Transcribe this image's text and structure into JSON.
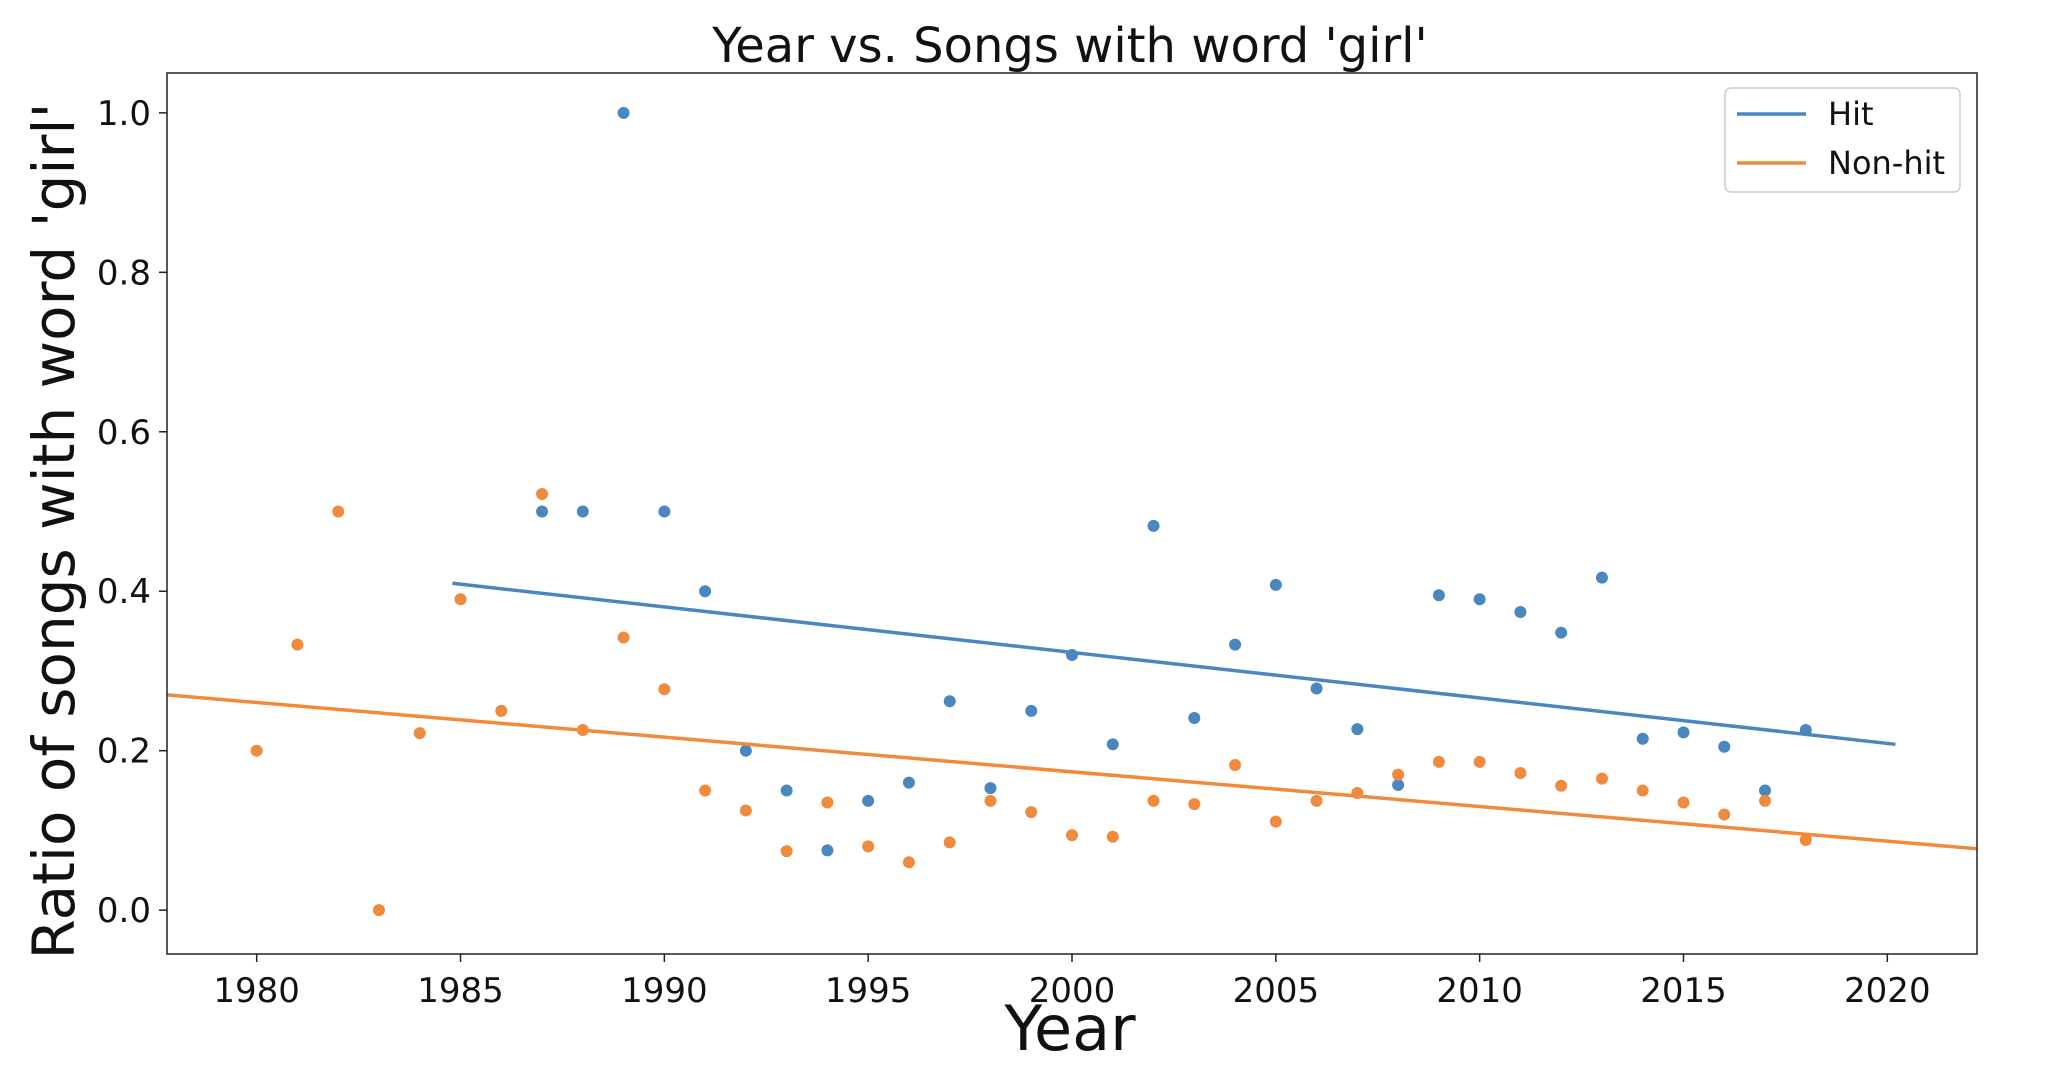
{
  "chart_data": {
    "type": "scatter",
    "title": "Year vs. Songs with word 'girl'",
    "xlabel": "Year",
    "ylabel": "Ratio of songs with word 'girl'",
    "xlim": [
      1977.8,
      2022.2
    ],
    "ylim": [
      -0.055,
      1.05
    ],
    "x_ticks": [
      1980,
      1985,
      1990,
      1995,
      2000,
      2005,
      2010,
      2015,
      2020
    ],
    "y_ticks": [
      0.0,
      0.2,
      0.4,
      0.6,
      0.8,
      1.0
    ],
    "y_tick_labels": [
      "0.0",
      "0.2",
      "0.4",
      "0.6",
      "0.8",
      "1.0"
    ],
    "grid": false,
    "legend_position": "top-right",
    "series": [
      {
        "name": "Hit",
        "color": "#4a86bf",
        "points": [
          [
            1987,
            0.5
          ],
          [
            1988,
            0.5
          ],
          [
            1989,
            1.0
          ],
          [
            1990,
            0.5
          ],
          [
            1991,
            0.4
          ],
          [
            1992,
            0.2
          ],
          [
            1993,
            0.15
          ],
          [
            1994,
            0.075
          ],
          [
            1995,
            0.137
          ],
          [
            1996,
            0.16
          ],
          [
            1997,
            0.262
          ],
          [
            1998,
            0.153
          ],
          [
            1999,
            0.25
          ],
          [
            2000,
            0.32
          ],
          [
            2001,
            0.208
          ],
          [
            2002,
            0.482
          ],
          [
            2003,
            0.241
          ],
          [
            2004,
            0.333
          ],
          [
            2005,
            0.408
          ],
          [
            2006,
            0.278
          ],
          [
            2007,
            0.227
          ],
          [
            2008,
            0.157
          ],
          [
            2009,
            0.395
          ],
          [
            2010,
            0.39
          ],
          [
            2011,
            0.374
          ],
          [
            2012,
            0.348
          ],
          [
            2013,
            0.417
          ],
          [
            2014,
            0.215
          ],
          [
            2015,
            0.223
          ],
          [
            2016,
            0.205
          ],
          [
            2017,
            0.15
          ],
          [
            2018,
            0.226
          ]
        ],
        "trend": {
          "x": [
            1984.8,
            2020.2
          ],
          "y": [
            0.41,
            0.208
          ]
        }
      },
      {
        "name": "Non-hit",
        "color": "#f08a3c",
        "points": [
          [
            1980,
            0.2
          ],
          [
            1981,
            0.333
          ],
          [
            1982,
            0.5
          ],
          [
            1983,
            0.0
          ],
          [
            1984,
            0.222
          ],
          [
            1985,
            0.39
          ],
          [
            1986,
            0.25
          ],
          [
            1987,
            0.522
          ],
          [
            1988,
            0.226
          ],
          [
            1989,
            0.342
          ],
          [
            1990,
            0.277
          ],
          [
            1991,
            0.15
          ],
          [
            1992,
            0.125
          ],
          [
            1993,
            0.074
          ],
          [
            1994,
            0.135
          ],
          [
            1995,
            0.08
          ],
          [
            1996,
            0.06
          ],
          [
            1997,
            0.085
          ],
          [
            1998,
            0.137
          ],
          [
            1999,
            0.123
          ],
          [
            2000,
            0.094
          ],
          [
            2001,
            0.092
          ],
          [
            2002,
            0.137
          ],
          [
            2003,
            0.133
          ],
          [
            2004,
            0.182
          ],
          [
            2005,
            0.111
          ],
          [
            2006,
            0.137
          ],
          [
            2007,
            0.147
          ],
          [
            2008,
            0.17
          ],
          [
            2009,
            0.186
          ],
          [
            2010,
            0.186
          ],
          [
            2011,
            0.172
          ],
          [
            2012,
            0.156
          ],
          [
            2013,
            0.165
          ],
          [
            2014,
            0.15
          ],
          [
            2015,
            0.135
          ],
          [
            2016,
            0.12
          ],
          [
            2017,
            0.137
          ],
          [
            2018,
            0.088
          ]
        ],
        "trend": {
          "x": [
            1977.8,
            2022.2
          ],
          "y": [
            0.27,
            0.077
          ]
        }
      }
    ]
  }
}
